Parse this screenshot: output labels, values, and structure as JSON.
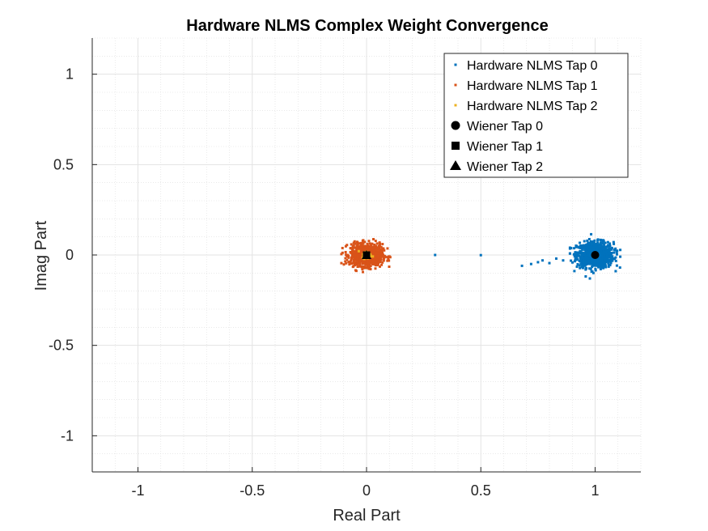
{
  "chart_data": {
    "type": "scatter",
    "title": "Hardware NLMS Complex Weight Convergence",
    "xlabel": "Real Part",
    "ylabel": "Imag Part",
    "xlim": [
      -1.2,
      1.2
    ],
    "ylim": [
      -1.2,
      1.2
    ],
    "xticks": [
      -1,
      -0.5,
      0,
      0.5,
      1
    ],
    "yticks": [
      -1,
      -0.5,
      0,
      0.5,
      1
    ],
    "xtick_labels": [
      "-1",
      "-0.5",
      "0",
      "0.5",
      "1"
    ],
    "ytick_labels": [
      "-1",
      "-0.5",
      "0",
      "0.5",
      "1"
    ],
    "grid": true,
    "minor_grid": true,
    "legend_position": "top-right",
    "series": [
      {
        "name": "Hardware NLMS Tap 0",
        "color": "#0072BD",
        "marker": "dot",
        "cluster": {
          "center": [
            1.0,
            0.0
          ],
          "spread_x": 0.04,
          "spread_y": 0.035,
          "count": 900
        },
        "transient_points": [
          [
            0.3,
            0.0
          ],
          [
            0.5,
            -0.001
          ],
          [
            0.68,
            -0.06
          ],
          [
            0.72,
            -0.05
          ],
          [
            0.75,
            -0.04
          ],
          [
            0.77,
            -0.03
          ],
          [
            0.8,
            -0.045
          ],
          [
            0.83,
            -0.02
          ],
          [
            0.86,
            -0.03
          ]
        ]
      },
      {
        "name": "Hardware NLMS Tap 1",
        "color": "#D95319",
        "marker": "dot",
        "cluster": {
          "center": [
            0.0,
            0.0
          ],
          "spread_x": 0.035,
          "spread_y": 0.03,
          "count": 900
        },
        "transient_points": []
      },
      {
        "name": "Hardware NLMS Tap 2",
        "color": "#EDB120",
        "marker": "dot",
        "cluster": {
          "center": [
            0.0,
            0.0
          ],
          "spread_x": 0.01,
          "spread_y": 0.01,
          "count": 60
        },
        "transient_points": []
      },
      {
        "name": "Wiener Tap 0",
        "color": "#000000",
        "marker": "circle",
        "points": [
          [
            1.0,
            0.0
          ]
        ]
      },
      {
        "name": "Wiener Tap 1",
        "color": "#000000",
        "marker": "square",
        "points": [
          [
            0.0,
            0.0
          ]
        ]
      },
      {
        "name": "Wiener Tap 2",
        "color": "#000000",
        "marker": "triangle",
        "points": [
          [
            0.0,
            0.0
          ]
        ]
      }
    ]
  }
}
